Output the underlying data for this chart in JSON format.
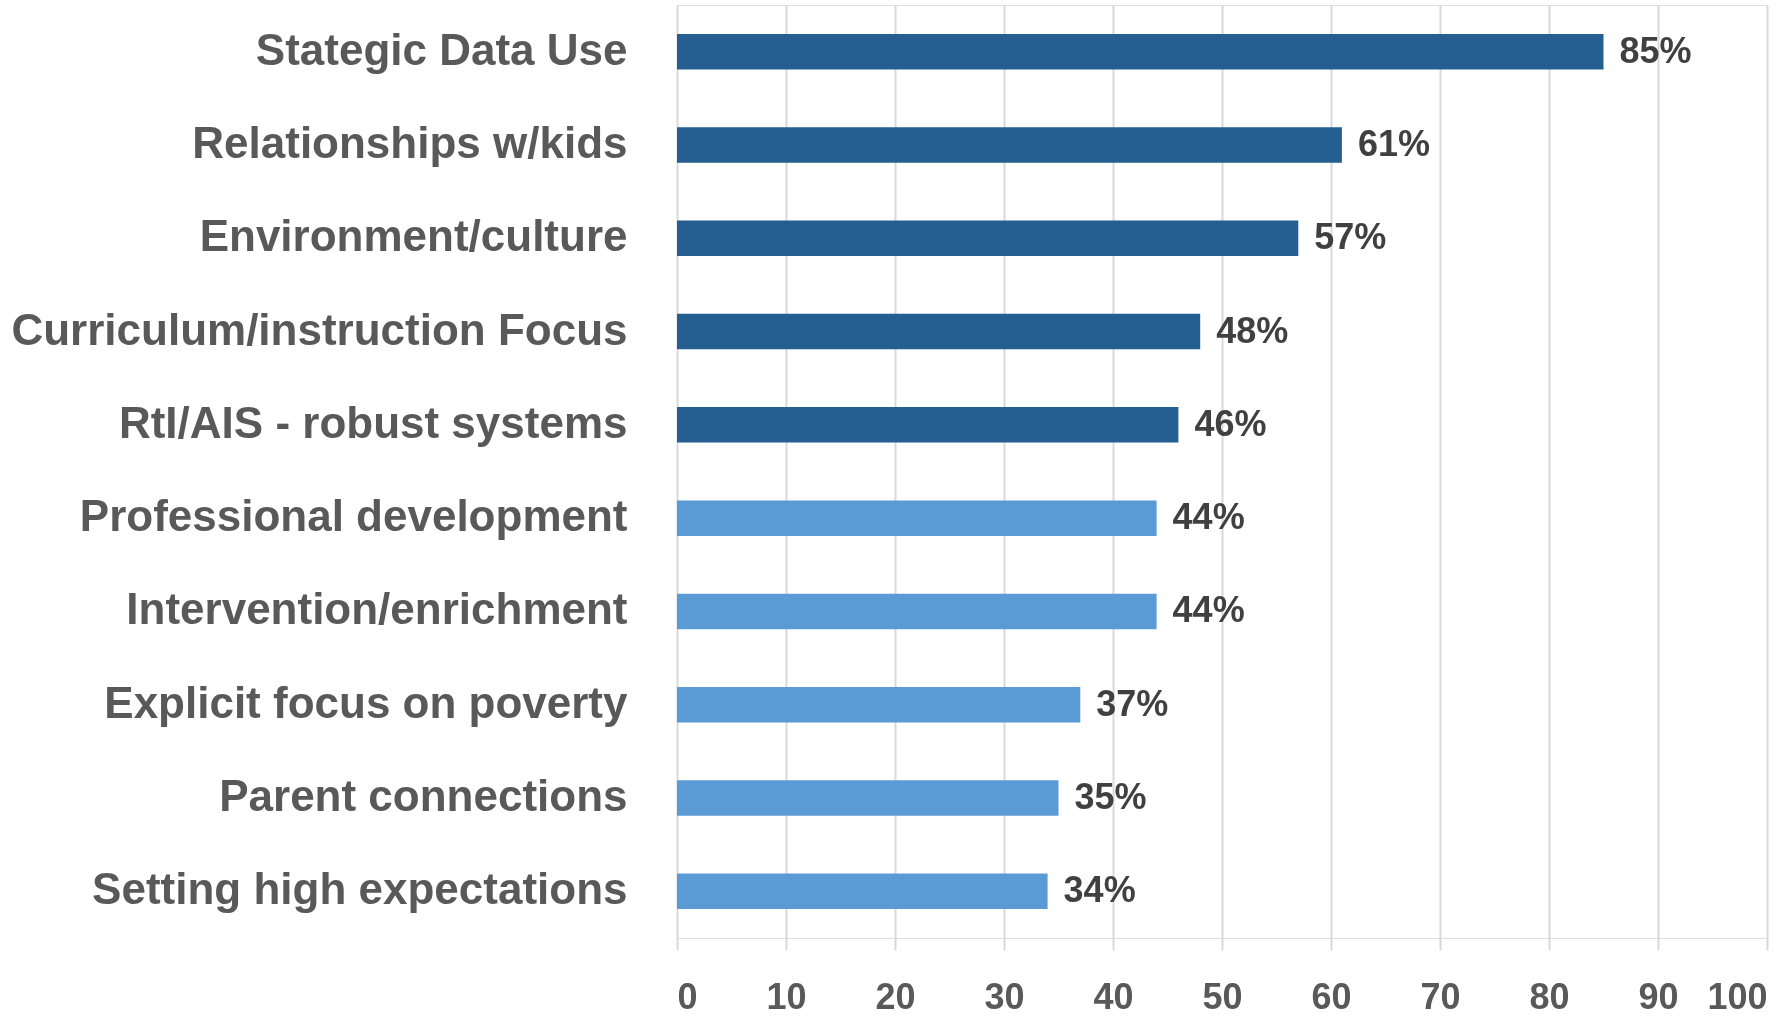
{
  "chart_data": {
    "type": "bar",
    "orientation": "horizontal",
    "categories": [
      "Stategic Data Use",
      "Relationships w/kids",
      "Environment/culture",
      "Curriculum/instruction Focus",
      "RtI/AIS - robust systems",
      "Professional development",
      "Intervention/enrichment",
      "Explicit focus on poverty",
      "Parent connections",
      "Setting high expectations"
    ],
    "values": [
      85,
      61,
      57,
      48,
      46,
      44,
      44,
      37,
      35,
      34
    ],
    "colors": [
      "#255e91",
      "#255e91",
      "#255e91",
      "#255e91",
      "#255e91",
      "#5b9bd5",
      "#5b9bd5",
      "#5b9bd5",
      "#5b9bd5",
      "#5b9bd5"
    ],
    "value_labels": [
      "85%",
      "61%",
      "57%",
      "48%",
      "46%",
      "44%",
      "44%",
      "37%",
      "35%",
      "34%"
    ],
    "xlim": [
      0,
      100
    ],
    "xticks": [
      0,
      10,
      20,
      30,
      40,
      50,
      60,
      70,
      80,
      90,
      100
    ],
    "grid": "x"
  }
}
